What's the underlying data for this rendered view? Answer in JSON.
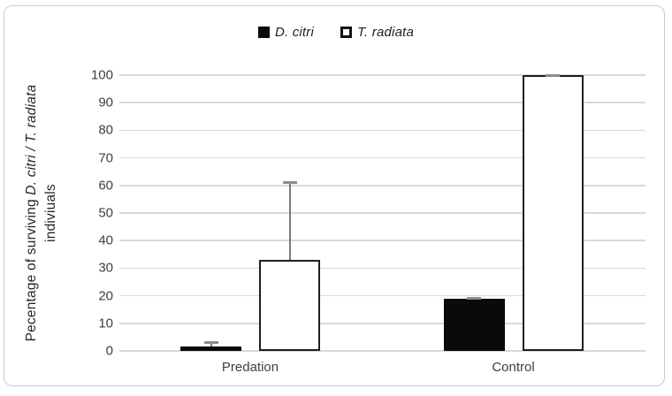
{
  "figure": {
    "background": "#ffffff",
    "border_color": "#cbcbcb"
  },
  "legend": {
    "items": [
      {
        "label": "D. citri",
        "swatch": "filled-black"
      },
      {
        "label": "T. radiata",
        "swatch": "outlined-white"
      }
    ]
  },
  "y_axis": {
    "title_line1_regular": "Pecentage of surviving ",
    "title_line1_italic": "D. citri / T. radiata",
    "title_line2": "indiviuals",
    "tick_labels": [
      "100",
      "90",
      "80",
      "70",
      "60",
      "50",
      "40",
      "30",
      "20",
      "10",
      "0"
    ]
  },
  "x_axis": {
    "categories": [
      "Predation",
      "Control"
    ]
  },
  "chart_data": {
    "type": "bar",
    "categories": [
      "Predation",
      "Control"
    ],
    "series": [
      {
        "name": "D. citri",
        "style": "solid-black",
        "values": [
          1.5,
          19
        ],
        "error_upper": [
          1.5,
          0
        ]
      },
      {
        "name": "T. radiata",
        "style": "white-outlined",
        "values": [
          33,
          100
        ],
        "error_upper": [
          28,
          0
        ]
      }
    ],
    "title": "",
    "xlabel": "",
    "ylabel": "Pecentage of surviving D. citri / T. radiata indiviuals",
    "ylim": [
      0,
      100
    ],
    "ytick_step": 10,
    "grid": true,
    "legend_position": "top-center",
    "colors": {
      "bar_fill_black": "#0a0a0a",
      "bar_fill_white": "#ffffff",
      "bar_border": "#1f1f1f",
      "gridline": "#d9d9d9",
      "error_bar": "#7a7a7a",
      "error_cap": "#8c8c8c",
      "text": "#3f3f3f"
    }
  }
}
